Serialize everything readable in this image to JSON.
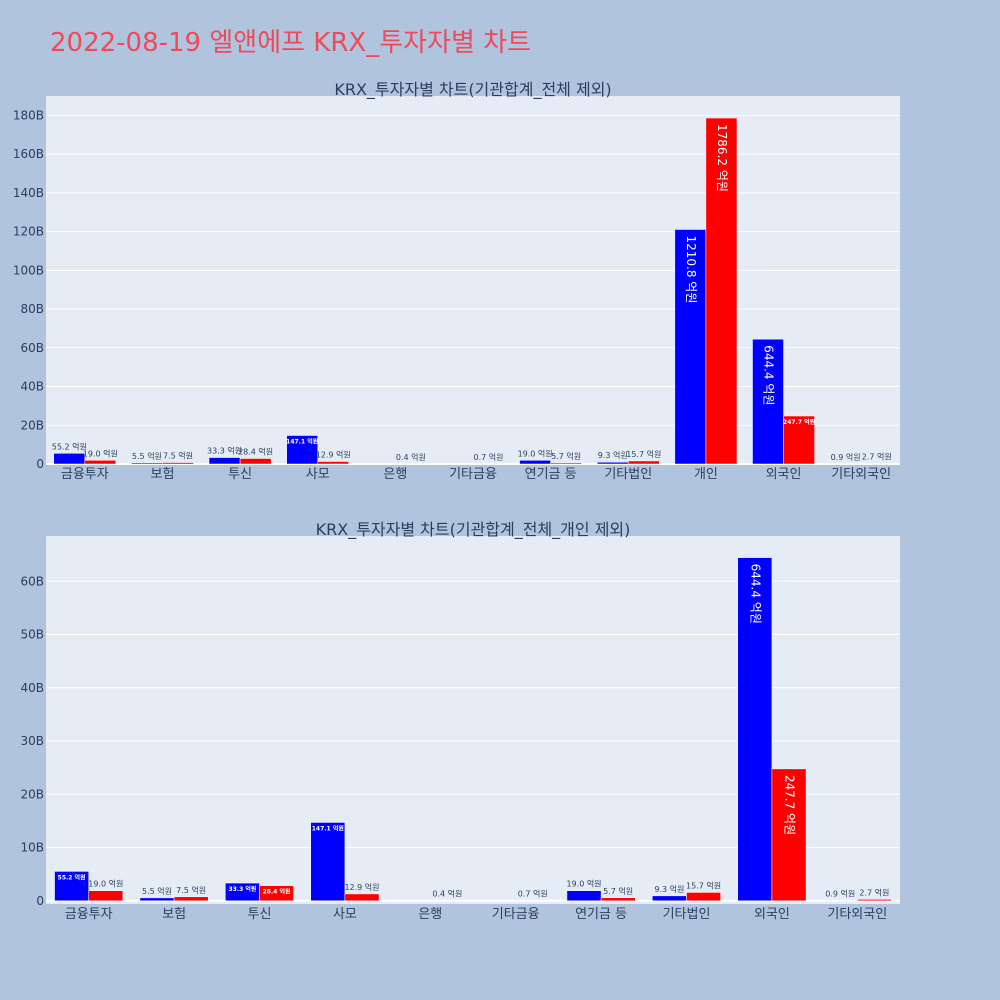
{
  "title": "2022-08-19 엘앤에프 KRX_투자자별 차트",
  "colors": {
    "background": "#b0c4de",
    "plot_bg": "#e5ecf6",
    "title": "#ef4a5a",
    "buy": "#0000ff",
    "sell": "#ff0000"
  },
  "chart_data": [
    {
      "type": "bar",
      "title": "KRX_투자자별 차트(기관합계_전체 제외)",
      "categories": [
        "금융투자",
        "보험",
        "투신",
        "사모",
        "은행",
        "기타금융",
        "연기금 등",
        "기타법인",
        "개인",
        "외국인",
        "기타외국인"
      ],
      "series": [
        {
          "values": [
            5.52,
            0.55,
            3.33,
            14.71,
            0,
            0,
            1.9,
            0.93,
            121.08,
            64.44,
            0.09
          ],
          "labels": [
            "55.2 억원",
            "5.5 억원",
            "33.3 억원",
            "147.1 억원",
            "",
            "",
            "19.0 억원",
            "9.3 억원",
            "1210.8 억원",
            "644.4 억원",
            "0.9 억원"
          ]
        },
        {
          "values": [
            1.9,
            0.75,
            2.84,
            1.29,
            0.04,
            0.07,
            0.57,
            1.57,
            178.62,
            24.77,
            0.27
          ],
          "labels": [
            "19.0 억원",
            "7.5 억원",
            "28.4 억원",
            "12.9 억원",
            "0.4 억원",
            "0.7 억원",
            "5.7 억원",
            "15.7 억원",
            "1786.2 억원",
            "247.7 억원",
            "2.7 억원"
          ]
        }
      ],
      "ylim": [
        0,
        190
      ],
      "yticks": [
        0,
        20,
        40,
        60,
        80,
        100,
        120,
        140,
        160,
        180
      ],
      "ytick_labels": [
        "0",
        "20B",
        "40B",
        "60B",
        "80B",
        "100B",
        "120B",
        "140B",
        "160B",
        "180B"
      ],
      "grid": true
    },
    {
      "type": "bar",
      "title": "KRX_투자자별 차트(기관합계_전체_개인 제외)",
      "categories": [
        "금융투자",
        "보험",
        "투신",
        "사모",
        "은행",
        "기타금융",
        "연기금 등",
        "기타법인",
        "외국인",
        "기타외국인"
      ],
      "series": [
        {
          "values": [
            5.52,
            0.55,
            3.33,
            14.71,
            0,
            0,
            1.9,
            0.93,
            64.44,
            0.09
          ],
          "labels": [
            "55.2 억원",
            "5.5 억원",
            "33.3 억원",
            "147.1 억원",
            "",
            "",
            "19.0 억원",
            "9.3 억원",
            "644.4 억원",
            "0.9 억원"
          ]
        },
        {
          "values": [
            1.9,
            0.75,
            2.84,
            1.29,
            0.04,
            0.07,
            0.57,
            1.57,
            24.77,
            0.27
          ],
          "labels": [
            "19.0 억원",
            "7.5 억원",
            "28.4 억원",
            "12.9 억원",
            "0.4 억원",
            "0.7 억원",
            "5.7 억원",
            "15.7 억원",
            "247.7 억원",
            "2.7 억원"
          ]
        }
      ],
      "ylim": [
        -0.6,
        68.5
      ],
      "yticks": [
        0,
        10,
        20,
        30,
        40,
        50,
        60
      ],
      "ytick_labels": [
        "0",
        "10B",
        "20B",
        "30B",
        "40B",
        "50B",
        "60B"
      ],
      "grid": true
    }
  ]
}
